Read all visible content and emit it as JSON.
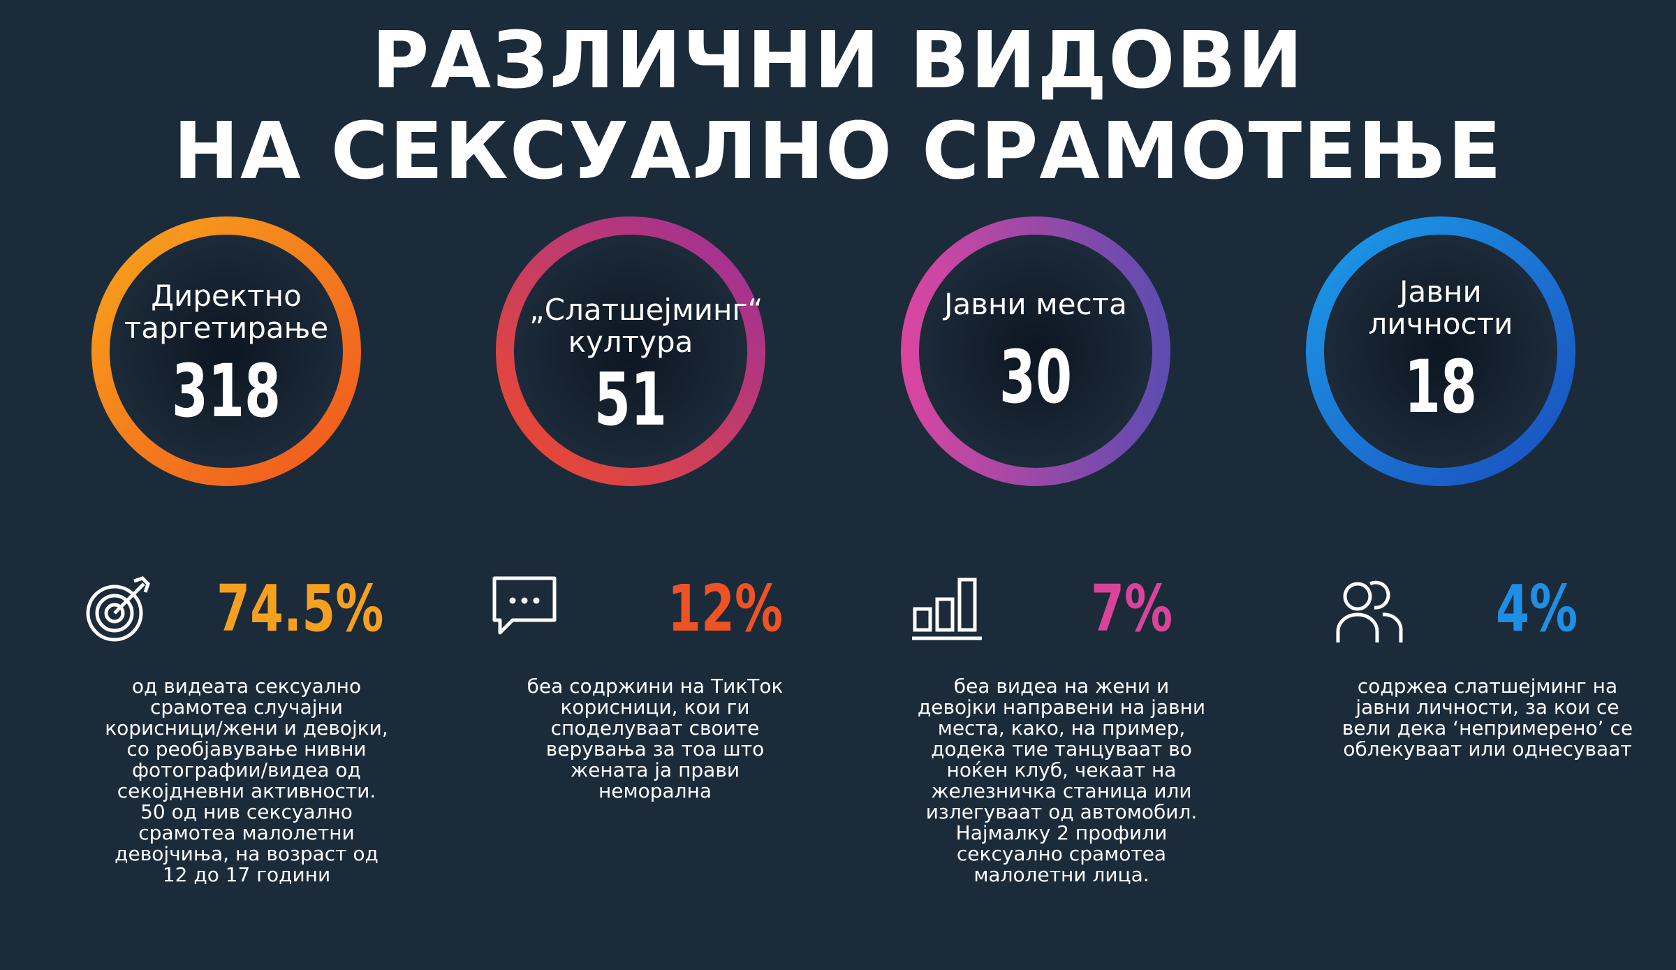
{
  "title": {
    "line1": "РАЗЛИЧНИ ВИДОВИ",
    "line2": "НА СЕКСУАЛНО СРАМОТЕЊЕ"
  },
  "categories": [
    {
      "label": "Директно таргетирање",
      "number": "318",
      "icon": "target-icon",
      "percent": "74.5%",
      "percent_color": "#f5a020",
      "ring_colors": [
        "#f7a31c",
        "#f0571e"
      ],
      "description": "од видеата сексуално срамотеа случајни корисници/жени и девојки, со реобјавување нивни фотографии/видеа од секојдневни активности. 50 од нив сексуално срамотеа малолетни девојчиња, на возраст од 12 до 17 години"
    },
    {
      "label": "„Слатшејминг“ култура",
      "number": "51",
      "icon": "chat-bubble-icon",
      "percent": "12%",
      "percent_color": "#ef5224",
      "ring_colors": [
        "#f04a2a",
        "#9b2f9e"
      ],
      "description": "беа содржини на ТикТок корисници, кои ги споделуваат своите верувања за тоа што жената ја прави неморална"
    },
    {
      "label": "Јавни места",
      "number": "30",
      "icon": "bar-chart-icon",
      "percent": "7%",
      "percent_color": "#d9449a",
      "ring_colors": [
        "#d846a0",
        "#5e4cb0"
      ],
      "description": "беа видеа на жени и девојки направени на јавни места, како, на пример, додека тие танцуваат во ноќен клуб, чекаат на железничка станица или излегуваат од автомобил. Најмалку 2 профили сексуално срамотеа малолетни лица."
    },
    {
      "label": "Јавни личности",
      "number": "18",
      "icon": "people-icon",
      "percent": "4%",
      "percent_color": "#1f8fe6",
      "ring_colors": [
        "#1c9ae8",
        "#1a4fbe"
      ],
      "description": "содржеа слатшејминг на јавни личности, за кои се вели дека ‘непримерено’ се облекуваат или однесуваат"
    }
  ]
}
